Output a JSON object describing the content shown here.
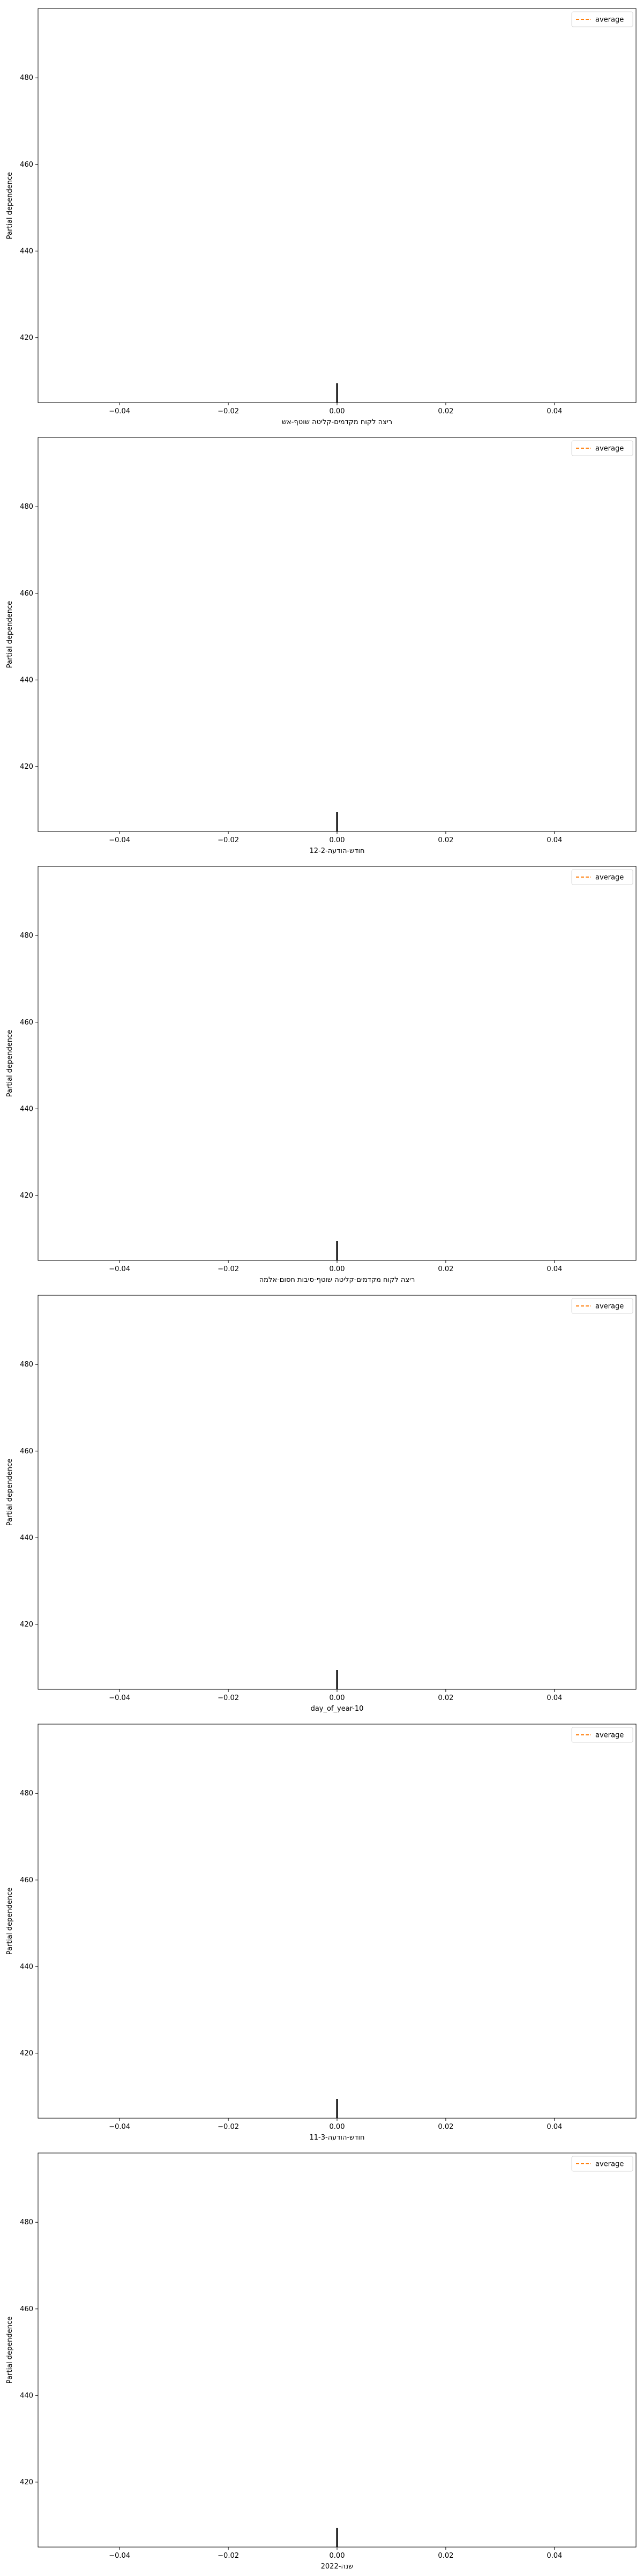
{
  "colors": {
    "average_line": "#ff7f0e",
    "rug": "#000000",
    "axes": "#000000",
    "background": "#ffffff"
  },
  "chart_data": [
    {
      "type": "line",
      "xlabel": "ריצה לקוח מקדמים-קליטה שוטף-אש",
      "ylabel": "Partial dependence",
      "xlim": [
        -0.055,
        0.055
      ],
      "ylim": [
        405,
        496
      ],
      "xticks": [
        -0.04,
        -0.02,
        0.0,
        0.02,
        0.04
      ],
      "xtick_labels": [
        "−0.04",
        "−0.02",
        "0.00",
        "0.02",
        "0.04"
      ],
      "yticks": [
        420,
        440,
        460,
        480
      ],
      "ytick_labels": [
        "420",
        "440",
        "460",
        "480"
      ],
      "legend": {
        "entries": [
          "average"
        ],
        "placement": "top-right"
      },
      "series": [
        {
          "name": "average",
          "style": "dashed",
          "x": [],
          "y": []
        }
      ],
      "rug": [
        0.0
      ]
    },
    {
      "type": "line",
      "xlabel": "חודש-הודעה-12-2",
      "ylabel": "Partial dependence",
      "xlim": [
        -0.055,
        0.055
      ],
      "ylim": [
        405,
        496
      ],
      "xticks": [
        -0.04,
        -0.02,
        0.0,
        0.02,
        0.04
      ],
      "xtick_labels": [
        "−0.04",
        "−0.02",
        "0.00",
        "0.02",
        "0.04"
      ],
      "yticks": [
        420,
        440,
        460,
        480
      ],
      "ytick_labels": [
        "420",
        "440",
        "460",
        "480"
      ],
      "legend": {
        "entries": [
          "average"
        ],
        "placement": "top-right"
      },
      "series": [
        {
          "name": "average",
          "style": "dashed",
          "x": [],
          "y": []
        }
      ],
      "rug": [
        0.0
      ]
    },
    {
      "type": "line",
      "xlabel": "ריצה לקוח מקדמים-קליטה שוטף-סיבות חסום-אלמה",
      "ylabel": "Partial dependence",
      "xlim": [
        -0.055,
        0.055
      ],
      "ylim": [
        405,
        496
      ],
      "xticks": [
        -0.04,
        -0.02,
        0.0,
        0.02,
        0.04
      ],
      "xtick_labels": [
        "−0.04",
        "−0.02",
        "0.00",
        "0.02",
        "0.04"
      ],
      "yticks": [
        420,
        440,
        460,
        480
      ],
      "ytick_labels": [
        "420",
        "440",
        "460",
        "480"
      ],
      "legend": {
        "entries": [
          "average"
        ],
        "placement": "top-right"
      },
      "series": [
        {
          "name": "average",
          "style": "dashed",
          "x": [],
          "y": []
        }
      ],
      "rug": [
        0.0
      ]
    },
    {
      "type": "line",
      "xlabel": "day_of_year-10",
      "ylabel": "Partial dependence",
      "xlim": [
        -0.055,
        0.055
      ],
      "ylim": [
        405,
        496
      ],
      "xticks": [
        -0.04,
        -0.02,
        0.0,
        0.02,
        0.04
      ],
      "xtick_labels": [
        "−0.04",
        "−0.02",
        "0.00",
        "0.02",
        "0.04"
      ],
      "yticks": [
        420,
        440,
        460,
        480
      ],
      "ytick_labels": [
        "420",
        "440",
        "460",
        "480"
      ],
      "legend": {
        "entries": [
          "average"
        ],
        "placement": "top-right"
      },
      "series": [
        {
          "name": "average",
          "style": "dashed",
          "x": [],
          "y": []
        }
      ],
      "rug": [
        0.0
      ]
    },
    {
      "type": "line",
      "xlabel": "חודש-הודעה-11-3",
      "ylabel": "Partial dependence",
      "xlim": [
        -0.055,
        0.055
      ],
      "ylim": [
        405,
        496
      ],
      "xticks": [
        -0.04,
        -0.02,
        0.0,
        0.02,
        0.04
      ],
      "xtick_labels": [
        "−0.04",
        "−0.02",
        "0.00",
        "0.02",
        "0.04"
      ],
      "yticks": [
        420,
        440,
        460,
        480
      ],
      "ytick_labels": [
        "420",
        "440",
        "460",
        "480"
      ],
      "legend": {
        "entries": [
          "average"
        ],
        "placement": "top-right"
      },
      "series": [
        {
          "name": "average",
          "style": "dashed",
          "x": [],
          "y": []
        }
      ],
      "rug": [
        0.0
      ]
    },
    {
      "type": "line",
      "xlabel": "שנה-2022",
      "ylabel": "Partial dependence",
      "xlim": [
        -0.055,
        0.055
      ],
      "ylim": [
        405,
        496
      ],
      "xticks": [
        -0.04,
        -0.02,
        0.0,
        0.02,
        0.04
      ],
      "xtick_labels": [
        "−0.04",
        "−0.02",
        "0.00",
        "0.02",
        "0.04"
      ],
      "yticks": [
        420,
        440,
        460,
        480
      ],
      "ytick_labels": [
        "420",
        "440",
        "460",
        "480"
      ],
      "legend": {
        "entries": [
          "average"
        ],
        "placement": "top-right"
      },
      "series": [
        {
          "name": "average",
          "style": "dashed",
          "x": [],
          "y": []
        }
      ],
      "rug": [
        0.0
      ]
    }
  ]
}
